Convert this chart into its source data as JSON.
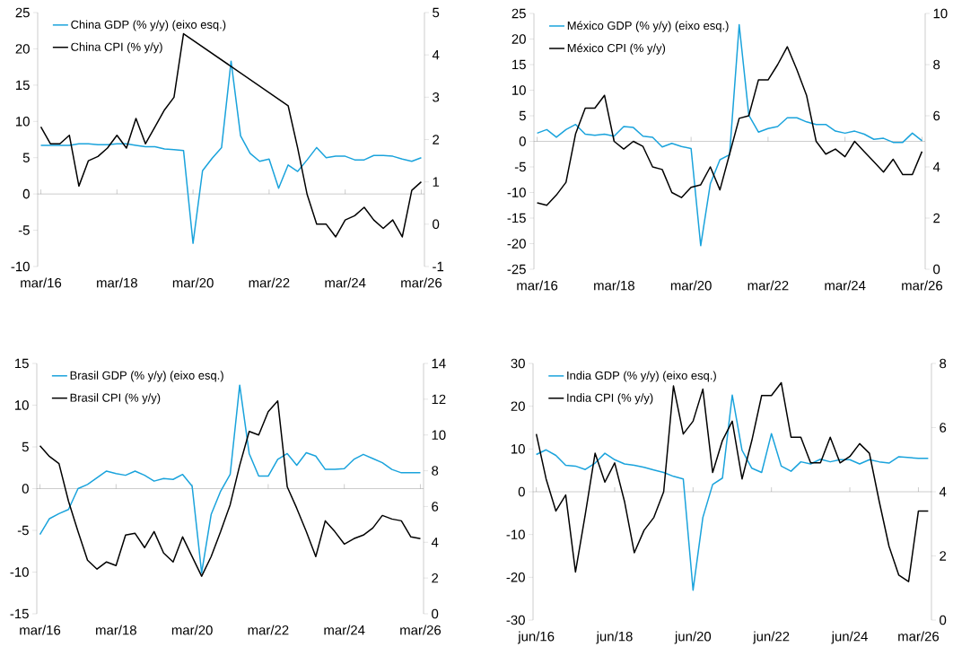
{
  "chart_data": [
    {
      "type": "line",
      "x": [
        "2016-03",
        "2016-06",
        "2016-09",
        "2016-12",
        "2017-03",
        "2017-06",
        "2017-09",
        "2017-12",
        "2018-03",
        "2018-06",
        "2018-09",
        "2018-12",
        "2019-03",
        "2019-06",
        "2019-09",
        "2019-12",
        "2020-03",
        "2020-06",
        "2020-09",
        "2020-12",
        "2021-03",
        "2021-06",
        "2021-09",
        "2021-12",
        "2022-03",
        "2022-06",
        "2022-09",
        "2022-12",
        "2023-03",
        "2023-06",
        "2023-09",
        "2023-12",
        "2024-03",
        "2024-06",
        "2024-09",
        "2024-12",
        "2025-03",
        "2025-06",
        "2025-09",
        "2025-12",
        "2026-03"
      ],
      "xlim": [
        "2016-02",
        "2026-04"
      ],
      "xticks": [
        {
          "value": "2016-03",
          "label": "mar/16"
        },
        {
          "value": "2018-03",
          "label": "mar/18"
        },
        {
          "value": "2020-03",
          "label": "mar/20"
        },
        {
          "value": "2022-03",
          "label": "mar/22"
        },
        {
          "value": "2024-03",
          "label": "mar/24"
        },
        {
          "value": "2026-03",
          "label": "mar/26"
        }
      ],
      "ylim": [
        -10,
        25
      ],
      "yticks": [
        -10,
        -5,
        0,
        5,
        10,
        15,
        20,
        25
      ],
      "y2lim": [
        -1,
        5
      ],
      "y2ticks": [
        -1,
        0,
        1,
        2,
        3,
        4,
        5
      ],
      "legend": "top left",
      "series": [
        {
          "name": "China GDP (% y/y) (eixo esq.)",
          "color": "#1aa3dc",
          "values": [
            6.7,
            6.7,
            6.7,
            6.7,
            6.9,
            6.9,
            6.8,
            6.8,
            6.9,
            6.9,
            6.7,
            6.5,
            6.5,
            6.2,
            6.1,
            6.0,
            -6.8,
            3.2,
            4.9,
            6.4,
            18.3,
            8.0,
            5.6,
            4.5,
            4.8,
            0.8,
            4.0,
            3.1,
            4.7,
            6.4,
            5.0,
            5.2,
            5.2,
            4.7,
            4.7,
            5.3,
            5.3,
            5.2,
            4.8,
            4.5,
            5.0
          ]
        },
        {
          "name": "China CPI (% y/y)",
          "color": "#000000",
          "axis": "y2",
          "x": [
            "2016-03",
            "2016-06",
            "2016-09",
            "2016-12",
            "2017-03",
            "2017-06",
            "2017-09",
            "2017-12",
            "2018-03",
            "2018-06",
            "2018-09",
            "2018-12",
            "2019-03",
            "2019-06",
            "2019-09",
            "2019-12",
            "2022-09",
            "2022-12",
            "2023-03",
            "2023-06",
            "2023-09",
            "2023-12",
            "2024-03",
            "2024-06",
            "2024-09",
            "2024-12",
            "2025-03",
            "2025-06",
            "2025-09",
            "2025-12",
            "2026-03"
          ],
          "values": [
            2.3,
            1.9,
            1.9,
            2.1,
            0.9,
            1.5,
            1.6,
            1.8,
            2.1,
            1.8,
            2.5,
            1.9,
            2.3,
            2.7,
            3.0,
            4.5,
            2.8,
            1.8,
            0.7,
            0.0,
            0.0,
            -0.3,
            0.1,
            0.2,
            0.4,
            0.1,
            -0.1,
            0.1,
            -0.3,
            0.8,
            1.0
          ]
        }
      ]
    },
    {
      "type": "line",
      "x": [
        "2016-03",
        "2016-06",
        "2016-09",
        "2016-12",
        "2017-03",
        "2017-06",
        "2017-09",
        "2017-12",
        "2018-03",
        "2018-06",
        "2018-09",
        "2018-12",
        "2019-03",
        "2019-06",
        "2019-09",
        "2019-12",
        "2020-03",
        "2020-06",
        "2020-09",
        "2020-12",
        "2021-03",
        "2021-06",
        "2021-09",
        "2021-12",
        "2022-03",
        "2022-06",
        "2022-09",
        "2022-12",
        "2023-03",
        "2023-06",
        "2023-09",
        "2023-12",
        "2024-03",
        "2024-06",
        "2024-09",
        "2024-12",
        "2025-03",
        "2025-06",
        "2025-09",
        "2025-12",
        "2026-03"
      ],
      "xlim": [
        "2016-02",
        "2026-04"
      ],
      "xticks": [
        {
          "value": "2016-03",
          "label": "mar/16"
        },
        {
          "value": "2018-03",
          "label": "mar/18"
        },
        {
          "value": "2020-03",
          "label": "mar/20"
        },
        {
          "value": "2022-03",
          "label": "mar/22"
        },
        {
          "value": "2024-03",
          "label": "mar/24"
        },
        {
          "value": "2026-03",
          "label": "mar/26"
        }
      ],
      "ylim": [
        -25,
        25
      ],
      "yticks": [
        -25,
        -20,
        -15,
        -10,
        -5,
        0,
        5,
        10,
        15,
        20,
        25
      ],
      "y2lim": [
        0,
        10
      ],
      "y2ticks": [
        0,
        2,
        4,
        6,
        8,
        10
      ],
      "legend": "top left",
      "series": [
        {
          "name": "México GDP (% y/y) (eixo esq.)",
          "color": "#1aa3dc",
          "values": [
            1.6,
            2.3,
            0.8,
            2.3,
            3.3,
            1.4,
            1.2,
            1.4,
            1.0,
            2.9,
            2.7,
            1.0,
            0.8,
            -1.1,
            -0.4,
            -1.0,
            -1.4,
            -20.4,
            -8.3,
            -3.6,
            -2.6,
            22.8,
            5.1,
            1.8,
            2.5,
            2.9,
            4.6,
            4.6,
            3.8,
            3.3,
            3.3,
            2.0,
            1.6,
            2.0,
            1.4,
            0.4,
            0.6,
            -0.2,
            -0.2,
            1.6,
            0.1
          ]
        },
        {
          "name": "México CPI (% y/y)",
          "color": "#000000",
          "axis": "y2",
          "values": [
            2.6,
            2.5,
            2.9,
            3.4,
            5.3,
            6.3,
            6.3,
            6.8,
            5.0,
            4.7,
            5.0,
            4.8,
            4.0,
            3.9,
            3.0,
            2.8,
            3.2,
            3.3,
            4.0,
            3.1,
            4.5,
            5.9,
            6.0,
            7.4,
            7.4,
            8.0,
            8.7,
            7.8,
            6.8,
            5.0,
            4.5,
            4.7,
            4.4,
            5.0,
            4.6,
            4.2,
            3.8,
            4.3,
            3.7,
            3.7,
            4.6
          ]
        }
      ]
    },
    {
      "type": "line",
      "x": [
        "2016-03",
        "2016-06",
        "2016-09",
        "2016-12",
        "2017-03",
        "2017-06",
        "2017-09",
        "2017-12",
        "2018-03",
        "2018-06",
        "2018-09",
        "2018-12",
        "2019-03",
        "2019-06",
        "2019-09",
        "2019-12",
        "2020-03",
        "2020-06",
        "2020-09",
        "2020-12",
        "2021-03",
        "2021-06",
        "2021-09",
        "2021-12",
        "2022-03",
        "2022-06",
        "2022-09",
        "2022-12",
        "2023-03",
        "2023-06",
        "2023-09",
        "2023-12",
        "2024-03",
        "2024-06",
        "2024-09",
        "2024-12",
        "2025-03",
        "2025-06",
        "2025-09",
        "2025-12",
        "2026-03"
      ],
      "xlim": [
        "2016-02",
        "2026-04"
      ],
      "xticks": [
        {
          "value": "2016-03",
          "label": "mar/16"
        },
        {
          "value": "2018-03",
          "label": "mar/18"
        },
        {
          "value": "2020-03",
          "label": "mar/20"
        },
        {
          "value": "2022-03",
          "label": "mar/22"
        },
        {
          "value": "2024-03",
          "label": "mar/24"
        },
        {
          "value": "2026-03",
          "label": "mar/26"
        }
      ],
      "ylim": [
        -15,
        15
      ],
      "yticks": [
        -15,
        -10,
        -5,
        0,
        5,
        10,
        15
      ],
      "y2lim": [
        0,
        14
      ],
      "y2ticks": [
        0,
        2,
        4,
        6,
        8,
        10,
        12,
        14
      ],
      "legend": "top left",
      "series": [
        {
          "name": "Brasil GDP (% y/y) (eixo esq.)",
          "color": "#1aa3dc",
          "values": [
            -5.5,
            -3.6,
            -3.0,
            -2.5,
            0.0,
            0.5,
            1.3,
            2.1,
            1.8,
            1.6,
            2.1,
            1.6,
            0.9,
            1.2,
            1.1,
            1.7,
            0.3,
            -10.1,
            -3.1,
            -0.3,
            1.7,
            12.4,
            4.2,
            1.5,
            1.5,
            3.5,
            4.2,
            2.8,
            4.3,
            3.9,
            2.3,
            2.3,
            2.4,
            3.5,
            4.1,
            3.6,
            3.1,
            2.3,
            1.9,
            1.9,
            1.9
          ]
        },
        {
          "name": "Brasil CPI (% y/y)",
          "color": "#000000",
          "axis": "y2",
          "values": [
            9.4,
            8.8,
            8.4,
            6.3,
            4.6,
            3.0,
            2.5,
            2.9,
            2.7,
            4.4,
            4.5,
            3.7,
            4.6,
            3.4,
            2.9,
            4.3,
            3.2,
            2.1,
            3.2,
            4.6,
            6.1,
            8.3,
            10.2,
            10.0,
            11.3,
            11.9,
            7.1,
            5.9,
            4.6,
            3.2,
            5.2,
            4.6,
            3.9,
            4.2,
            4.4,
            4.8,
            5.5,
            5.3,
            5.2,
            4.3,
            4.2
          ]
        }
      ]
    },
    {
      "type": "line",
      "x": [
        "2016-06",
        "2016-09",
        "2016-12",
        "2017-03",
        "2017-06",
        "2017-09",
        "2017-12",
        "2018-03",
        "2018-06",
        "2018-09",
        "2018-12",
        "2019-03",
        "2019-06",
        "2019-09",
        "2019-12",
        "2020-03",
        "2020-06",
        "2020-09",
        "2020-12",
        "2021-03",
        "2021-06",
        "2021-09",
        "2021-12",
        "2022-03",
        "2022-06",
        "2022-09",
        "2022-12",
        "2023-03",
        "2023-06",
        "2023-09",
        "2023-12",
        "2024-03",
        "2024-06",
        "2024-09",
        "2024-12",
        "2025-03",
        "2025-06",
        "2025-09",
        "2025-12",
        "2026-03",
        "2026-06"
      ],
      "xlim": [
        "2016-05",
        "2026-07"
      ],
      "xticks": [
        {
          "value": "2016-06",
          "label": "jun/16"
        },
        {
          "value": "2018-06",
          "label": "jun/18"
        },
        {
          "value": "2020-06",
          "label": "jun/20"
        },
        {
          "value": "2022-06",
          "label": "jun/22"
        },
        {
          "value": "2024-06",
          "label": "jun/24"
        },
        {
          "value": "2026-03",
          "label": "mar/26"
        }
      ],
      "ylim": [
        -30,
        30
      ],
      "yticks": [
        -30,
        -20,
        -10,
        0,
        10,
        20,
        30
      ],
      "y2lim": [
        0,
        8
      ],
      "y2ticks": [
        0,
        2,
        4,
        6,
        8
      ],
      "legend": "top left",
      "series": [
        {
          "name": "India GDP (% y/y) (eixo esq.)",
          "color": "#1aa3dc",
          "values": [
            8.7,
            9.8,
            8.5,
            6.2,
            6.0,
            5.2,
            6.7,
            9.0,
            7.5,
            6.5,
            6.2,
            5.7,
            5.1,
            4.5,
            3.6,
            3.0,
            -23.0,
            -6.0,
            1.7,
            3.2,
            22.6,
            9.7,
            5.5,
            4.5,
            13.6,
            6.0,
            4.8,
            7.0,
            6.5,
            7.6,
            7.0,
            7.5,
            7.5,
            6.5,
            7.5,
            7.0,
            6.7,
            8.2,
            8.0,
            7.8,
            7.8
          ]
        },
        {
          "name": "India CPI (% y/y)",
          "color": "#000000",
          "axis": "y2",
          "values": [
            5.8,
            4.4,
            3.4,
            3.9,
            1.5,
            3.3,
            5.2,
            4.3,
            4.9,
            3.7,
            2.1,
            2.8,
            3.2,
            4.0,
            7.3,
            5.8,
            6.2,
            7.2,
            4.6,
            5.6,
            6.2,
            4.4,
            5.6,
            7.0,
            7.0,
            7.4,
            5.7,
            5.7,
            4.9,
            4.9,
            5.7,
            4.9,
            5.1,
            5.5,
            5.2,
            3.7,
            2.3,
            1.4,
            1.2,
            3.4,
            3.4
          ]
        }
      ]
    }
  ]
}
